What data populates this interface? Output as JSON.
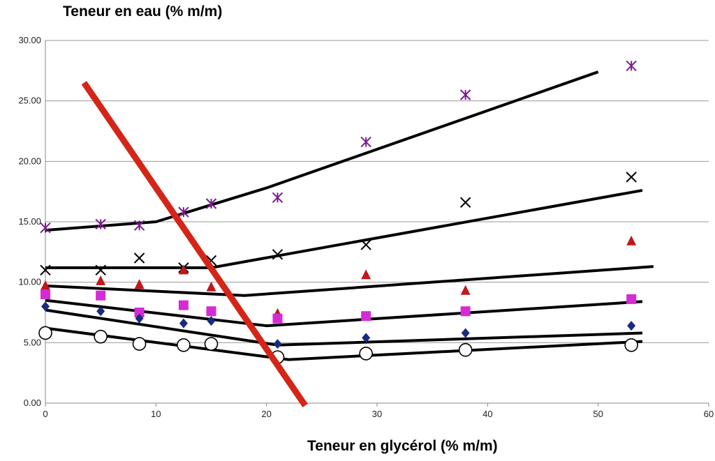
{
  "chart_data": {
    "type": "scatter",
    "title": "",
    "xlabel": "Teneur en glycérol (% m/m)",
    "ylabel": "Teneur en eau (% m/m)",
    "xlim": [
      0,
      60
    ],
    "ylim": [
      0,
      30
    ],
    "grid": true,
    "x_ticks": [
      "0",
      "10",
      "20",
      "30",
      "40",
      "50",
      "60"
    ],
    "y_ticks": [
      "0.00",
      "5.00",
      "10.00",
      "15.00",
      "20.00",
      "25.00",
      "30.00"
    ],
    "series": [
      {
        "marker": "asterisk",
        "color": "#7a1d8c",
        "points": [
          [
            0,
            14.5
          ],
          [
            5,
            14.8
          ],
          [
            8.5,
            14.7
          ],
          [
            12.5,
            15.8
          ],
          [
            15,
            16.5
          ],
          [
            21,
            17.0
          ],
          [
            29,
            21.6
          ],
          [
            38,
            25.5
          ],
          [
            53,
            27.9
          ]
        ],
        "fit_line": [
          [
            0,
            14.3
          ],
          [
            10,
            15.0
          ],
          [
            20,
            17.8
          ],
          [
            50,
            27.4
          ]
        ]
      },
      {
        "marker": "x",
        "color": "#000000",
        "points": [
          [
            0,
            11.0
          ],
          [
            5,
            11.0
          ],
          [
            8.5,
            12.0
          ],
          [
            12.5,
            11.2
          ],
          [
            15,
            11.8
          ],
          [
            21,
            12.3
          ],
          [
            29,
            13.1
          ],
          [
            38,
            16.6
          ],
          [
            53,
            18.7
          ]
        ],
        "fit_line": [
          [
            0,
            11.2
          ],
          [
            15,
            11.2
          ],
          [
            54,
            17.6
          ]
        ]
      },
      {
        "marker": "triangle",
        "color": "#c0181c",
        "points": [
          [
            0,
            9.7
          ],
          [
            5,
            10.1
          ],
          [
            8.5,
            9.8
          ],
          [
            12.5,
            11.0
          ],
          [
            15,
            9.6
          ],
          [
            21,
            7.4
          ],
          [
            29,
            10.6
          ],
          [
            38,
            9.3
          ],
          [
            53,
            13.4
          ]
        ],
        "fit_line": [
          [
            0,
            9.7
          ],
          [
            18,
            8.9
          ],
          [
            55,
            11.3
          ]
        ]
      },
      {
        "marker": "square",
        "color": "#d62ad6",
        "points": [
          [
            0,
            9.0
          ],
          [
            5,
            8.9
          ],
          [
            8.5,
            7.5
          ],
          [
            12.5,
            8.1
          ],
          [
            15,
            7.6
          ],
          [
            21,
            7.0
          ],
          [
            29,
            7.2
          ],
          [
            38,
            7.6
          ],
          [
            53,
            8.6
          ]
        ],
        "fit_line": [
          [
            0,
            8.5
          ],
          [
            20,
            6.4
          ],
          [
            54,
            8.4
          ]
        ]
      },
      {
        "marker": "diamond",
        "color": "#1b2a80",
        "points": [
          [
            0,
            8.0
          ],
          [
            5,
            7.6
          ],
          [
            8.5,
            7.0
          ],
          [
            12.5,
            6.6
          ],
          [
            15,
            6.8
          ],
          [
            21,
            4.9
          ],
          [
            29,
            5.4
          ],
          [
            38,
            5.8
          ],
          [
            53,
            6.4
          ]
        ],
        "fit_line": [
          [
            0,
            7.7
          ],
          [
            21,
            4.8
          ],
          [
            54,
            5.8
          ]
        ]
      },
      {
        "marker": "circle",
        "color": "#000000",
        "points": [
          [
            0,
            5.8
          ],
          [
            5,
            5.5
          ],
          [
            8.5,
            4.9
          ],
          [
            12.5,
            4.8
          ],
          [
            15,
            4.9
          ],
          [
            21,
            3.8
          ],
          [
            29,
            4.1
          ],
          [
            38,
            4.4
          ],
          [
            53,
            4.8
          ]
        ],
        "fit_line": [
          [
            0,
            6.2
          ],
          [
            22,
            3.6
          ],
          [
            54,
            5.1
          ]
        ]
      }
    ],
    "boundary_line": {
      "color": "#d42518",
      "points": [
        [
          3.5,
          26.5
        ],
        [
          23.5,
          -0.2
        ]
      ]
    }
  }
}
